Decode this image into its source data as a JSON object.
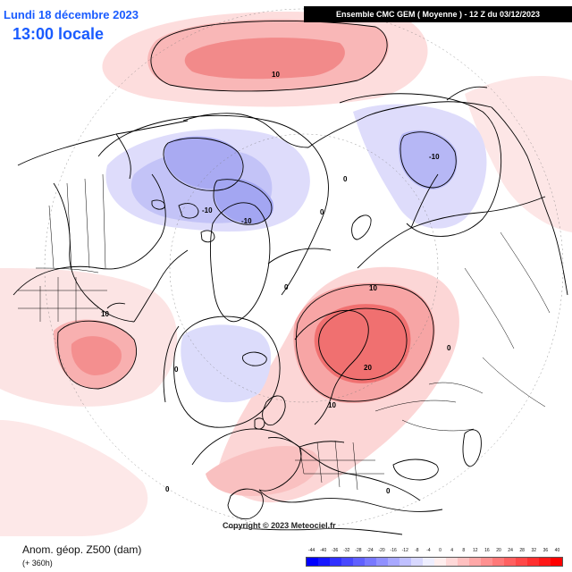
{
  "header": {
    "date": "Lundi 18 décembre 2023",
    "time": "13:00 locale",
    "model": "Ensemble CMC GEM  ( Moyenne )  -  12 Z du 03/12/2023"
  },
  "footer": {
    "copyright": "Copyright © 2023 Meteociel.fr",
    "title": "Anom. géop. Z500 (dam)",
    "lead": "(+ 360h)"
  },
  "colors": {
    "ocean_background": "#ffffff",
    "positive_anomaly": "#f26b6b",
    "negative_anomaly": "#7c84ea",
    "coast": "#000000",
    "contour": "#000000"
  },
  "contour_labels": [
    "10",
    "-10",
    "-10",
    "0",
    "0",
    "-10",
    "0",
    "10",
    "0",
    "10",
    "0",
    "20",
    "10",
    "0",
    "0"
  ],
  "legend": {
    "ticks": [
      "-44",
      "-40",
      "-36",
      "-32",
      "-28",
      "-24",
      "-20",
      "-16",
      "-12",
      "-8",
      "-4",
      "0",
      "4",
      "8",
      "12",
      "16",
      "20",
      "24",
      "28",
      "32",
      "36",
      "40"
    ],
    "colors": [
      "#0000ff",
      "#1818ff",
      "#3030ff",
      "#4848ff",
      "#6060ff",
      "#7878ff",
      "#9090ff",
      "#a8a8ff",
      "#c0c0ff",
      "#d8d8ff",
      "#eeeeff",
      "#ffeeee",
      "#ffd8d8",
      "#ffc0c0",
      "#ffa8a8",
      "#ff9090",
      "#ff7878",
      "#ff6060",
      "#ff4848",
      "#ff3030",
      "#ff1818",
      "#ff0000"
    ]
  }
}
